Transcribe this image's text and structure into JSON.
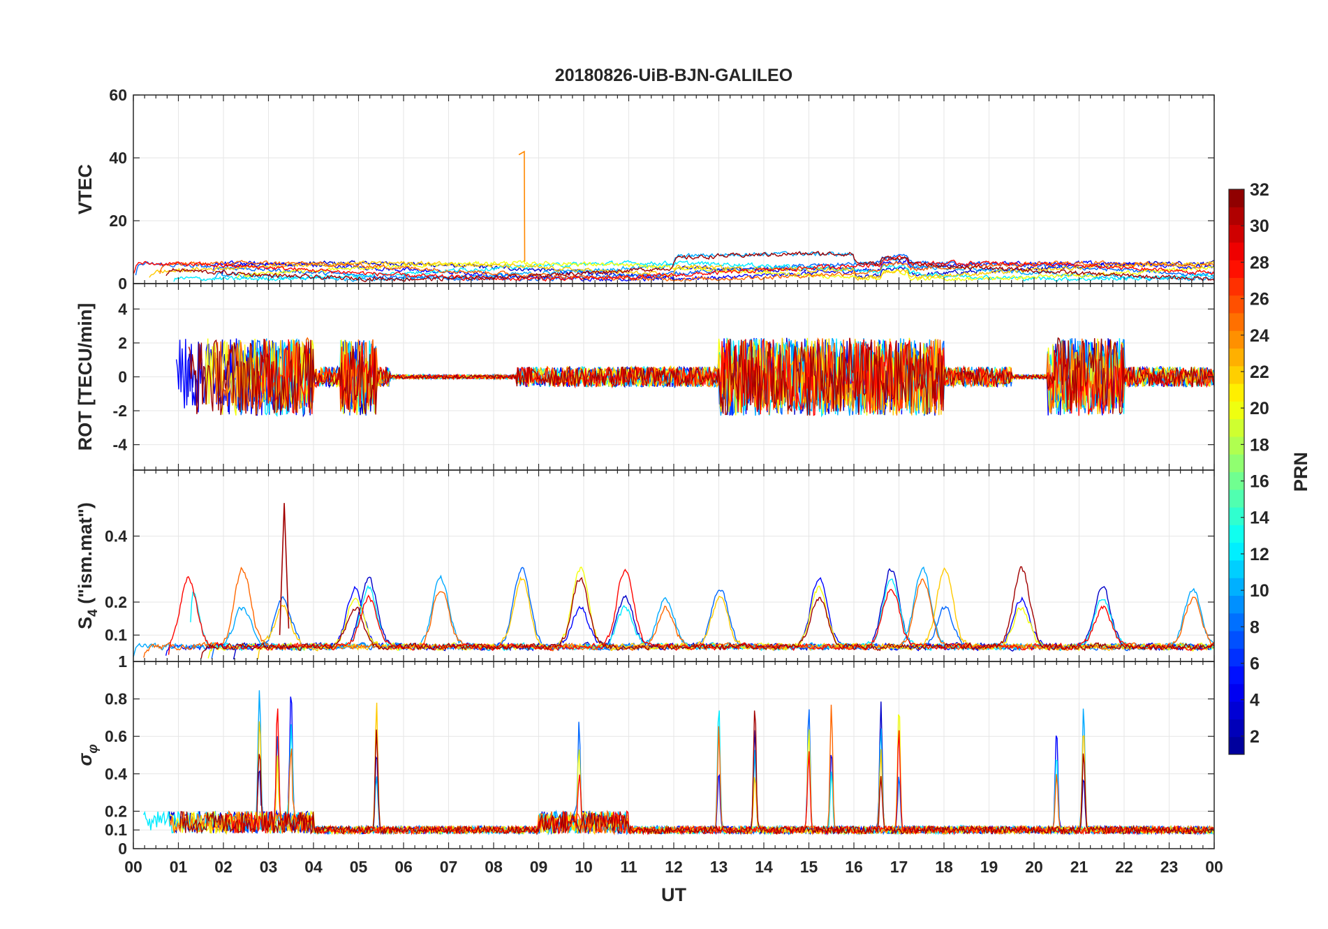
{
  "chart_data": {
    "type": "line",
    "title": "20180826-UiB-BJN-GALILEO",
    "xlabel": "UT",
    "x_tick_labels": [
      "00",
      "01",
      "02",
      "03",
      "04",
      "05",
      "06",
      "07",
      "08",
      "09",
      "10",
      "11",
      "12",
      "13",
      "14",
      "15",
      "16",
      "17",
      "18",
      "19",
      "20",
      "21",
      "22",
      "23",
      "00"
    ],
    "xlim_hours": [
      0,
      24
    ],
    "grid": true,
    "colorbar": {
      "label": "PRN",
      "range": [
        1,
        32
      ],
      "tick_labels": [
        "2",
        "4",
        "6",
        "8",
        "10",
        "12",
        "14",
        "16",
        "18",
        "20",
        "22",
        "24",
        "26",
        "28",
        "30",
        "32"
      ],
      "colormap": "jet",
      "colors": [
        "#00008f",
        "#0000ff",
        "#0080ff",
        "#00ffff",
        "#80ff80",
        "#ffff00",
        "#ff8000",
        "#ff0000",
        "#800000"
      ]
    },
    "panels": [
      {
        "ylabel": "VTEC",
        "ylim": [
          0,
          60
        ],
        "y_tick_values": [
          0,
          20,
          40,
          60
        ],
        "y_tick_labels": [
          "0",
          "20",
          "40",
          "60"
        ],
        "notes": "background VTEC ~3-10 TECU; single spike to ~42 TECU near 08:40 UT",
        "spike": {
          "time_h": 8.68,
          "value": 42
        }
      },
      {
        "ylabel": "ROT [TECU/min]",
        "ylim": [
          -5.5,
          5.5
        ],
        "y_tick_values": [
          -4,
          -2,
          0,
          2,
          4
        ],
        "y_tick_labels": [
          "-4",
          "-2",
          "0",
          "2",
          "4"
        ],
        "active_periods_h": [
          [
            0,
            5.7
          ],
          [
            8.5,
            19.5
          ],
          [
            20.3,
            24
          ]
        ]
      },
      {
        "ylabel": "S4 (\"ism.mat\")",
        "ylabel_main": "S",
        "ylabel_sub": "4",
        "ylabel_rest": " (\"ism.mat\")",
        "ylim": [
          0.02,
          0.6
        ],
        "y_tick_values": [
          0.1,
          0.2,
          0.4
        ],
        "y_tick_labels": [
          "0.1",
          "0.2",
          "0.4"
        ],
        "peak": {
          "time_h": 3.35,
          "value": 0.5
        }
      },
      {
        "ylabel": "σφ",
        "ylabel_main": "σ",
        "ylabel_sub": "φ",
        "ylim": [
          0,
          1
        ],
        "y_tick_values": [
          0,
          0.1,
          0.2,
          0.4,
          0.6,
          0.8,
          1
        ],
        "y_tick_labels": [
          "0",
          "0.1",
          "0.2",
          "0.4",
          "0.6",
          "0.8",
          "1"
        ]
      }
    ]
  }
}
